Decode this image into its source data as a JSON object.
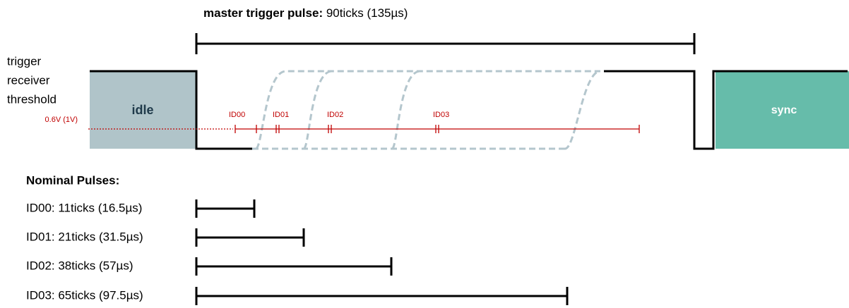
{
  "header": {
    "title_bold": "master trigger pulse:",
    "title_rest": " 90ticks (135µs)"
  },
  "threshold_label": [
    "trigger",
    "receiver",
    "threshold"
  ],
  "threshold_value": "0.6V (1V)",
  "states": {
    "idle": "idle",
    "sync": "sync"
  },
  "id_labels": [
    "ID00",
    "ID01",
    "ID02",
    "ID03"
  ],
  "nominal": {
    "title": "Nominal Pulses:",
    "pulses": [
      "ID00: 11ticks (16.5µs)",
      "ID01: 21ticks (31.5µs)",
      "ID02: 38ticks (57µs)",
      "ID03: 65ticks (97.5µs)"
    ]
  }
}
